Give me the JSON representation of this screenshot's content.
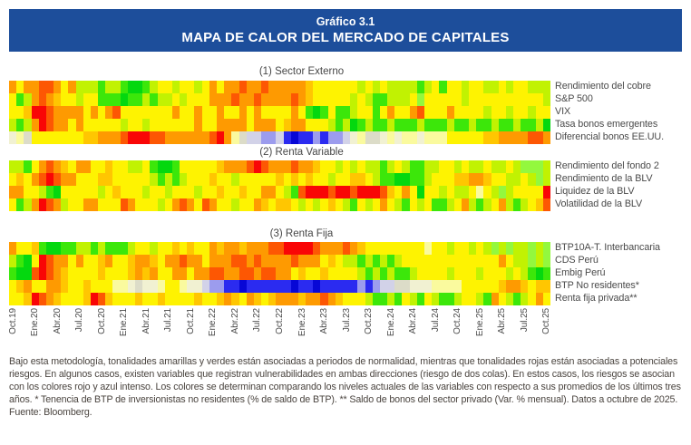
{
  "header": {
    "line1": "Gráfico 3.1",
    "line2": "MAPA DE CALOR DEL MERCADO DE CAPITALES",
    "bg_color": "#1d4e9b"
  },
  "chart_data": {
    "type": "heatmap",
    "n_cols": 73,
    "tick_step": 3,
    "x_tick_labels": [
      "Oct.19",
      "Ene.20",
      "Abr.20",
      "Jul.20",
      "Oct.20",
      "Ene.21",
      "Abr.21",
      "Jul.21",
      "Oct.21",
      "Ene.22",
      "Abr.22",
      "Jul.22",
      "Oct.22",
      "Ene.23",
      "Abr.23",
      "Jul.23",
      "Oct.23",
      "Ene.24",
      "Abr.24",
      "Jul.24",
      "Oct.24",
      "Ene.25",
      "Abr.25",
      "Jul.25",
      "Oct.25"
    ],
    "legend_note": "yellow/green = normality, red = risk, intense blue = opposite-tail risk",
    "palette": {
      "R": "#f90606",
      "r": "#fd5703",
      "O": "#fe9a01",
      "o": "#ffc601",
      "Y": "#fef301",
      "y": "#fafa9e",
      "C": "#f1f1d2",
      "E": "#dcdcc8",
      "W": "#d2d2e8",
      "b": "#9c9cee",
      "B": "#2b2bf0",
      "D": "#0707d6",
      "g": "#c1f202",
      "L": "#93f83e",
      "G": "#3ce70a",
      "H": "#04d80f"
    },
    "sections": [
      {
        "title": "(1) Sector Externo",
        "rows": [
          {
            "label": "Rendimiento del cobre",
            "cells": "OYOOrrOYOgggGggGHHGgYYgYYgYOYOOrOOrOOOOOoYYYYYYgYgYggggGgYGYYgYYggYgYYggg"
          },
          {
            "label": "S&P 500",
            "cells": "YGgOrOoYYgYYGGGHGGgGggYgYYYOOOrOOrOOOOrOoYYYYYgYgGGgggYLYYYYYgYYYYYYYYYYg"
          },
          {
            "label": "VIX",
            "cells": "YYoRRrOOOOYOYOrYYYYYYYOYYOYYOYYOYOYYYYOYGHGYGGgYYGYOYYOrYYYOYYYYgYYgYYgYY"
          },
          {
            "label": "Tasa bonos emergentes",
            "cells": "gGgORrOOYOYYYYYgYYgYYYYYYOYYOOOOYOOOYoOOYYYgGgHGgGGgGGGgGGGgGGgGGgGGgGGgH"
          },
          {
            "label": "Diferencial bonos EE.UU.",
            "cells": "CyEYYYYYYYooOOOrRRRrrOOOOOOrROyEWWbbWBDBBbBbbWCyEECyCyyCyyyYYYYYooOOOOrrO"
          }
        ]
      },
      {
        "title": "(2) Renta Variable",
        "rows": [
          {
            "label": "Rendimiento del fondo 2",
            "cells": "ggGYOrOoYOOYYoYYggYGHHGYYYYYoOOOrRrOOOrOOoYYgYgYggGgYgGGggYYgYggYggYgLLLg"
          },
          {
            "label": "Rendimiento de la BLV",
            "cells": "YoYOrRrOOYYYooYYYYYgGgGgYYYoYYgYYYYYoYoYoYYgYYooYgGGHHGGgYYYooOOoYYggYgLg"
          },
          {
            "label": "Liquidez de la BLV",
            "cells": "OOYYgGHYYYYYgYoYYYgYYgYYYgYYoYYoYYOOYgGrRRRrRRrRRRroYOYHYYgYggYyYgLgYYYYR"
          },
          {
            "label": "Volatilidad de la BLV",
            "cells": "YGgORrOgYYOOYYYrOYYYgYOrOYrOYYgYYOoYooYgYgYoYgGYgYOYgGYgYGGgYOgGgYOgGgYor"
          }
        ]
      },
      {
        "title": "(3) Renta Fija",
        "rows": [
          {
            "label": "BTP10A-T. Interbancaria",
            "cells": "OYYoGHHGGggGgGGGgYYgYYoYoYYOoOOoOOOrrRRRRrOOOrOoYYYYYYYYyYYgYYgYgLgLggLgL"
          },
          {
            "label": "CDS Perú",
            "cells": "gGHYRrOOYOYYoOYYoOOoYOOrOOYOOOrrOrOOOOrOOOYoYggGgGgGgYYYYYYYYYYYYYOYggLgL"
          },
          {
            "label": "Embig Perú",
            "cells": "GHHrRrOoYYYYoYYYoOoOYYOOYOOrrOOrrOrrOOYoYYoYYYYgGgGgGGgYYYYgYYYgYYYgYgGHG"
          },
          {
            "label": "BTP No residentes*",
            "cells": "YoOYYOOoYYoYYYyyCECCyYYyCCWbbBBDBBBBBBDBBDBBBBBbBbWWEECCCyyyyYYYYYoOOoYoo"
          },
          {
            "label": "Renta fija privada**",
            "cells": "YYoRrOoYYYoRroYYYoYYoYYYYoYYoOoYOoYoOOOoOOrOoYYYgGGgGYgGYgGGgYYgGOYgGgYOY"
          }
        ]
      }
    ]
  },
  "footer": {
    "note": "Bajo esta metodología, tonalidades amarillas y verdes están asociadas a periodos de normalidad, mientras que tonalidades rojas están asociadas a potenciales riesgos. En algunos casos, existen variables que registran vulnerabilidades en ambas direcciones (riesgo de dos colas). En estos casos, los riesgos se asocian con los colores rojo y azul intenso. Los colores se determinan comparando los niveles actuales de las variables con respecto a sus promedios de los últimos tres años. * Tenencia de BTP de inversionistas no residentes (% de saldo de BTP). ** Saldo de bonos del sector privado (Var. % mensual). Datos a octubre de 2025.",
    "source": "Fuente: Bloomberg."
  }
}
